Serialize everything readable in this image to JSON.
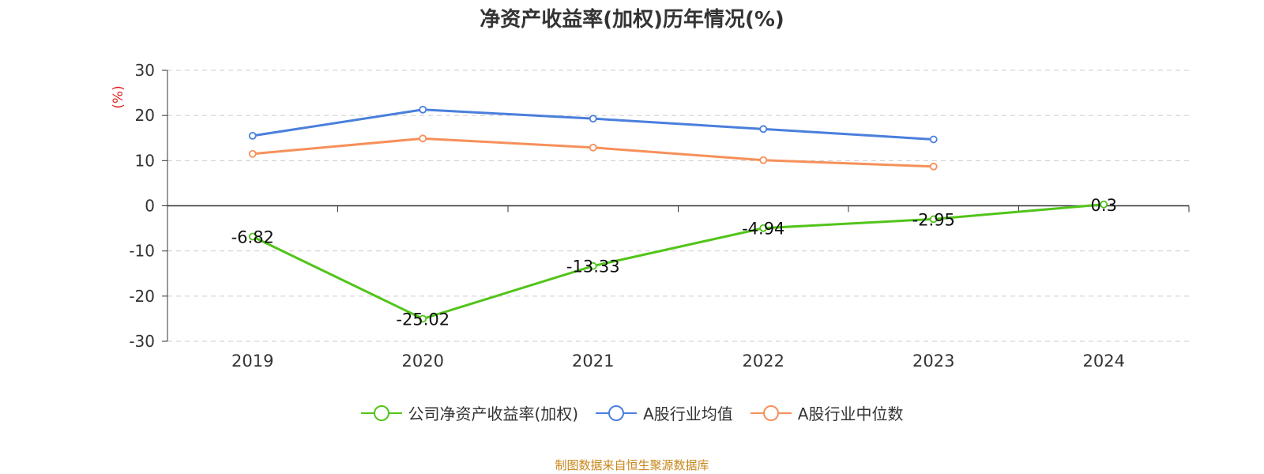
{
  "chart_data": {
    "type": "line",
    "title": "净资产收益率(加权)历年情况(%)",
    "ylabel": "(%)",
    "xlabel": "",
    "categories": [
      "2019",
      "2020",
      "2021",
      "2022",
      "2023",
      "2024"
    ],
    "ylim": [
      -30,
      30
    ],
    "yticks": [
      "30",
      "20",
      "10",
      "0",
      "-10",
      "-20",
      "-30"
    ],
    "grid": true,
    "legend_position": "bottom",
    "series": [
      {
        "name": "公司净资产收益率(加权)",
        "color": "#52c41a",
        "values": [
          -6.82,
          -25.02,
          -13.33,
          -4.94,
          -2.95,
          0.3
        ],
        "labels": [
          "-6.82",
          "-25.02",
          "-13.33",
          "-4.94",
          "-2.95",
          "0.3"
        ]
      },
      {
        "name": "A股行业均值",
        "color": "#4a7fdc",
        "values": [
          15.5,
          21.3,
          19.3,
          17.0,
          14.7,
          null
        ]
      },
      {
        "name": "A股行业中位数",
        "color": "#f6905a",
        "values": [
          11.5,
          14.9,
          12.9,
          10.1,
          8.7,
          null
        ]
      }
    ]
  },
  "source": "制图数据来自恒生聚源数据库"
}
